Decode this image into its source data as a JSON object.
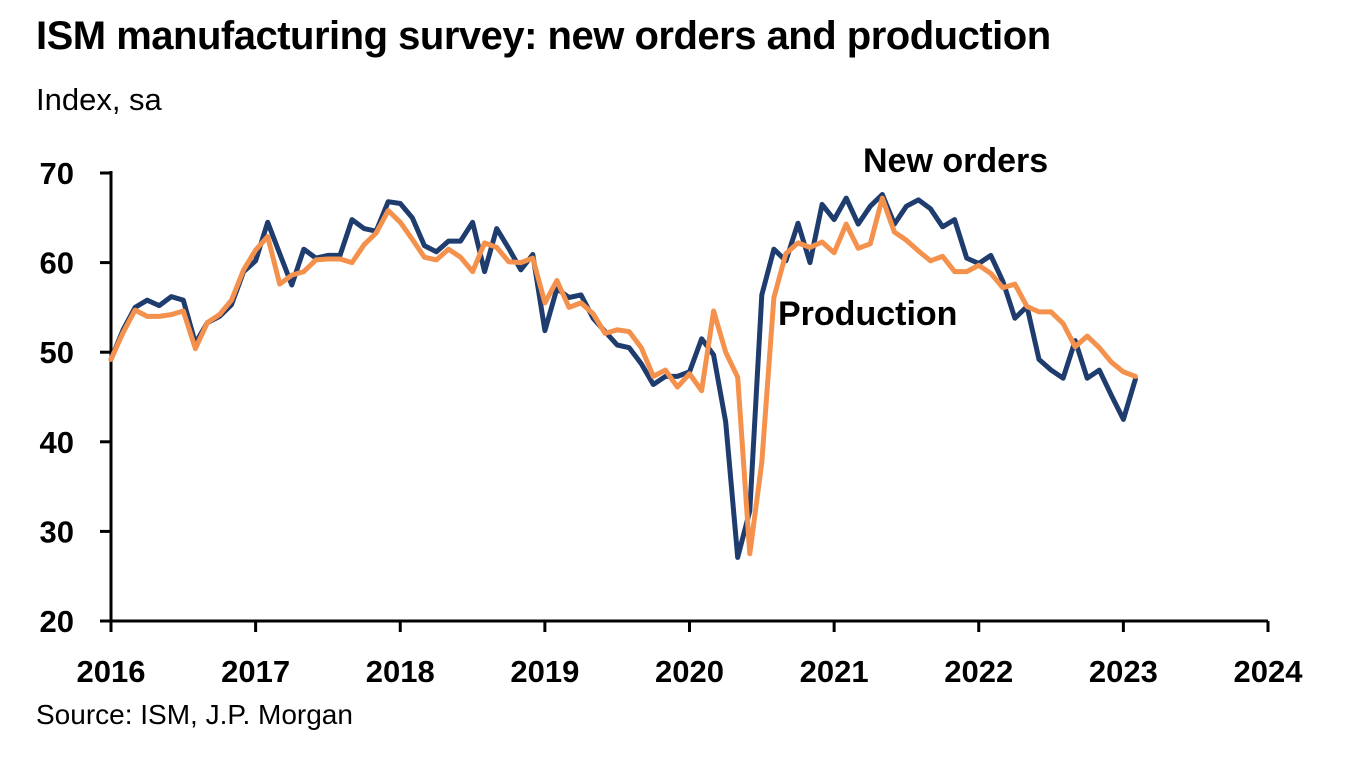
{
  "title": "ISM manufacturing survey: new orders and production",
  "subtitle": "Index, sa",
  "source": "Source: ISM, J.P. Morgan",
  "chart_data": {
    "type": "line",
    "y_ticks": [
      20,
      30,
      40,
      50,
      60,
      70
    ],
    "x_ticks": [
      "2016",
      "2017",
      "2018",
      "2019",
      "2020",
      "2021",
      "2022",
      "2023",
      "2024"
    ],
    "ylim": [
      20,
      70
    ],
    "xlim": [
      2016,
      2024
    ],
    "grid": false,
    "x_period": "monthly",
    "x_start": "2016-01",
    "annotations": [
      {
        "text": "New orders",
        "series": "New orders"
      },
      {
        "text": "Production",
        "series": "Production"
      }
    ],
    "series": [
      {
        "name": "New orders",
        "color": "#1f3c6e",
        "values": [
          49.2,
          52.5,
          55.0,
          55.8,
          55.2,
          56.2,
          55.8,
          51.0,
          53.3,
          54.0,
          55.3,
          59.0,
          60.2,
          64.5,
          61.0,
          57.5,
          61.5,
          60.5,
          60.8,
          60.8,
          64.8,
          63.8,
          63.5,
          66.8,
          66.6,
          65.0,
          61.9,
          61.2,
          62.4,
          62.4,
          64.5,
          59.0,
          63.8,
          61.6,
          59.2,
          60.9,
          52.4,
          57.1,
          56.1,
          56.4,
          53.8,
          52.3,
          50.8,
          50.5,
          48.7,
          46.4,
          47.3,
          47.3,
          47.8,
          51.5,
          49.7,
          42.2,
          27.1,
          32.3,
          56.4,
          61.5,
          60.2,
          64.4,
          60.0,
          66.5,
          64.8,
          67.2,
          64.3,
          66.3,
          67.6,
          64.3,
          66.3,
          67.0,
          66.0,
          64.0,
          64.8,
          60.5,
          59.9,
          60.8,
          57.9,
          53.8,
          55.1,
          49.2,
          48.0,
          47.1,
          51.3,
          47.1,
          48.0,
          45.2,
          42.5,
          47.0
        ]
      },
      {
        "name": "Production",
        "color": "#f4914c",
        "values": [
          49.2,
          52.2,
          54.7,
          54.0,
          54.0,
          54.2,
          54.6,
          50.4,
          53.3,
          54.2,
          55.8,
          59.2,
          61.4,
          62.9,
          57.6,
          58.6,
          59.0,
          60.3,
          60.4,
          60.4,
          60.0,
          62.0,
          63.3,
          65.8,
          64.5,
          62.6,
          60.6,
          60.3,
          61.5,
          60.6,
          59.0,
          62.2,
          61.7,
          60.1,
          60.0,
          60.5,
          55.5,
          58.0,
          55.0,
          55.5,
          54.3,
          52.1,
          52.5,
          52.3,
          50.5,
          47.3,
          48.0,
          46.1,
          47.6,
          45.7,
          54.6,
          50.0,
          47.2,
          27.5,
          37.7,
          56.1,
          61.0,
          62.2,
          61.7,
          62.3,
          61.1,
          64.3,
          61.6,
          62.1,
          67.2,
          63.4,
          62.5,
          61.3,
          60.2,
          60.7,
          59.0,
          59.0,
          59.7,
          58.8,
          57.2,
          57.6,
          55.1,
          54.5,
          54.5,
          53.2,
          50.6,
          51.8,
          50.5,
          48.9,
          47.8,
          47.3
        ]
      }
    ]
  }
}
